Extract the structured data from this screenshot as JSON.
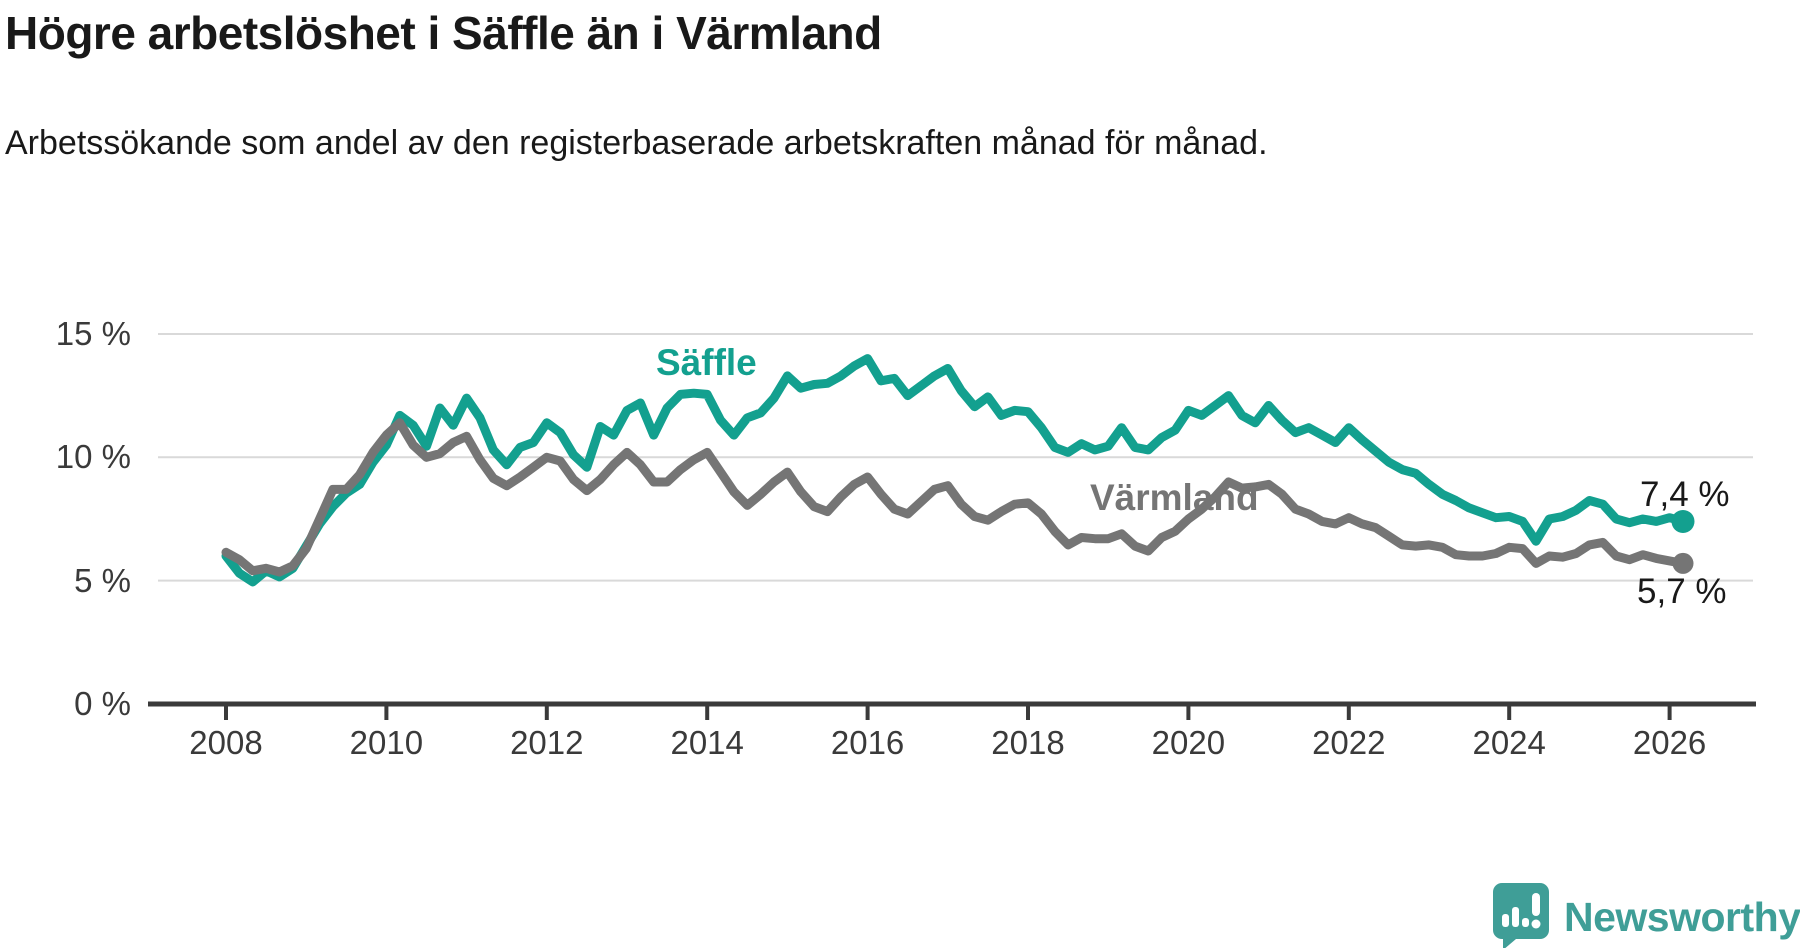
{
  "title": "Högre arbetslöshet i Säffle än i Värmland",
  "subtitle": "Arbetssökande som andel av den registerbaserade arbetskraften månad för månad.",
  "branding": {
    "logo_text": "Newsworthy",
    "brand_color": "#3f9e97",
    "logo_icon": "speech-bubble-bar-chart"
  },
  "chart_data": {
    "type": "line",
    "title": "Högre arbetslöshet i Säffle än i Värmland",
    "subtitle": "Arbetssökande som andel av den registerbaserade arbetskraften månad för månad.",
    "unit": "%",
    "x_start": "2008-01",
    "x_end": "2026-02",
    "points_every_n_months": 2,
    "grid": "horizontal",
    "ylim": [
      0,
      15
    ],
    "y_tick_values": [
      0,
      5,
      10,
      15
    ],
    "y_tick_labels": [
      "0 %",
      "5 %",
      "10 %",
      "15 %"
    ],
    "x_tick_years": [
      2008,
      2010,
      2012,
      2014,
      2016,
      2018,
      2020,
      2022,
      2024,
      2026
    ],
    "x_tick_labels": [
      "2008",
      "2010",
      "2012",
      "2014",
      "2016",
      "2018",
      "2020",
      "2022",
      "2024",
      "2026"
    ],
    "axis_color": "#3a3a3a",
    "grid_color": "#d9d9d9",
    "series": [
      {
        "name": "Säffle",
        "color": "#13a08f",
        "end_label": "7,4 %",
        "end_value": 7.4,
        "values": [
          6.0,
          5.3,
          4.95,
          5.4,
          5.15,
          5.5,
          6.4,
          7.3,
          8.0,
          8.55,
          8.9,
          9.8,
          10.5,
          11.7,
          11.3,
          10.45,
          12.0,
          11.3,
          12.4,
          11.6,
          10.3,
          9.7,
          10.4,
          10.6,
          11.4,
          11.0,
          10.1,
          9.6,
          11.25,
          10.9,
          11.9,
          12.2,
          10.9,
          12.0,
          12.55,
          12.6,
          12.55,
          11.5,
          10.9,
          11.6,
          11.8,
          12.4,
          13.3,
          12.8,
          12.95,
          13.0,
          13.3,
          13.7,
          14.0,
          13.1,
          13.2,
          12.5,
          12.9,
          13.3,
          13.6,
          12.7,
          12.05,
          12.45,
          11.7,
          11.9,
          11.85,
          11.2,
          10.4,
          10.2,
          10.55,
          10.3,
          10.45,
          11.2,
          10.4,
          10.3,
          10.8,
          11.1,
          11.9,
          11.7,
          12.1,
          12.5,
          11.7,
          11.4,
          12.1,
          11.5,
          11.0,
          11.2,
          10.9,
          10.6,
          11.2,
          10.7,
          10.25,
          9.8,
          9.5,
          9.35,
          8.9,
          8.5,
          8.25,
          7.95,
          7.75,
          7.55,
          7.6,
          7.4,
          6.6,
          7.5,
          7.6,
          7.85,
          8.25,
          8.1,
          7.5,
          7.35,
          7.5,
          7.4,
          7.55,
          7.4
        ]
      },
      {
        "name": "Värmland",
        "color": "#757575",
        "end_label": "5,7 %",
        "end_value": 5.7,
        "values": [
          6.15,
          5.85,
          5.4,
          5.5,
          5.35,
          5.6,
          6.3,
          7.5,
          8.7,
          8.7,
          9.3,
          10.2,
          10.9,
          11.4,
          10.5,
          10.0,
          10.15,
          10.6,
          10.85,
          9.9,
          9.15,
          8.85,
          9.2,
          9.6,
          10.0,
          9.85,
          9.1,
          8.65,
          9.1,
          9.7,
          10.2,
          9.7,
          9.0,
          9.0,
          9.5,
          9.9,
          10.2,
          9.4,
          8.6,
          8.05,
          8.5,
          9.0,
          9.4,
          8.6,
          8.0,
          7.8,
          8.4,
          8.9,
          9.2,
          8.5,
          7.9,
          7.7,
          8.2,
          8.7,
          8.85,
          8.1,
          7.6,
          7.45,
          7.8,
          8.1,
          8.15,
          7.7,
          7.0,
          6.45,
          6.75,
          6.7,
          6.7,
          6.9,
          6.4,
          6.2,
          6.75,
          7.0,
          7.5,
          7.9,
          8.4,
          9.0,
          8.75,
          8.8,
          8.9,
          8.5,
          7.9,
          7.7,
          7.4,
          7.3,
          7.55,
          7.3,
          7.15,
          6.8,
          6.45,
          6.4,
          6.45,
          6.35,
          6.05,
          6.0,
          6.0,
          6.1,
          6.35,
          6.3,
          5.7,
          6.0,
          5.95,
          6.1,
          6.45,
          6.55,
          6.0,
          5.85,
          6.05,
          5.9,
          5.8,
          5.7
        ]
      }
    ],
    "legend_position": "inline-labels",
    "end_point_markers": true
  }
}
